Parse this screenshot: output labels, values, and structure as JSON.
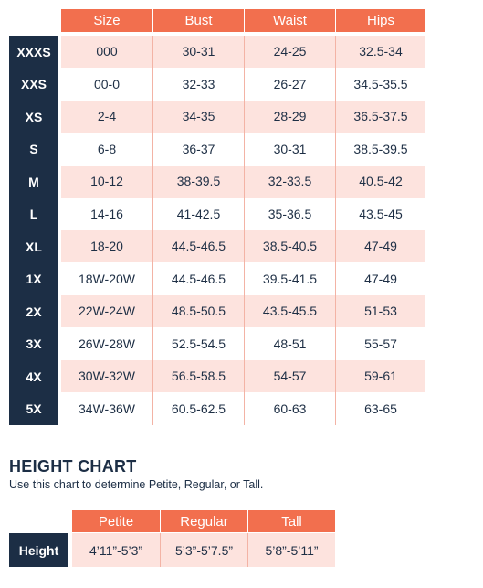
{
  "size_chart": {
    "headers": [
      "Size",
      "Bust",
      "Waist",
      "Hips"
    ],
    "rows": [
      {
        "label": "XXXS",
        "cells": [
          "000",
          "30-31",
          "24-25",
          "32.5-34"
        ]
      },
      {
        "label": "XXS",
        "cells": [
          "00-0",
          "32-33",
          "26-27",
          "34.5-35.5"
        ]
      },
      {
        "label": "XS",
        "cells": [
          "2-4",
          "34-35",
          "28-29",
          "36.5-37.5"
        ]
      },
      {
        "label": "S",
        "cells": [
          "6-8",
          "36-37",
          "30-31",
          "38.5-39.5"
        ]
      },
      {
        "label": "M",
        "cells": [
          "10-12",
          "38-39.5",
          "32-33.5",
          "40.5-42"
        ]
      },
      {
        "label": "L",
        "cells": [
          "14-16",
          "41-42.5",
          "35-36.5",
          "43.5-45"
        ]
      },
      {
        "label": "XL",
        "cells": [
          "18-20",
          "44.5-46.5",
          "38.5-40.5",
          "47-49"
        ]
      },
      {
        "label": "1X",
        "cells": [
          "18W-20W",
          "44.5-46.5",
          "39.5-41.5",
          "47-49"
        ]
      },
      {
        "label": "2X",
        "cells": [
          "22W-24W",
          "48.5-50.5",
          "43.5-45.5",
          "51-53"
        ]
      },
      {
        "label": "3X",
        "cells": [
          "26W-28W",
          "52.5-54.5",
          "48-51",
          "55-57"
        ]
      },
      {
        "label": "4X",
        "cells": [
          "30W-32W",
          "56.5-58.5",
          "54-57",
          "59-61"
        ]
      },
      {
        "label": "5X",
        "cells": [
          "34W-36W",
          "60.5-62.5",
          "60-63",
          "63-65"
        ]
      }
    ]
  },
  "height_chart": {
    "title": "HEIGHT CHART",
    "subtitle": "Use this chart to determine Petite, Regular, or Tall.",
    "headers": [
      "Petite",
      "Regular",
      "Tall"
    ],
    "row_label": "Height",
    "cells": [
      "4’11”-5’3”",
      "5’3”-5’7.5”",
      "5’8”-5’11”"
    ]
  },
  "colors": {
    "header_orange": "#f26f4e",
    "navy": "#1c2e45",
    "row_pink": "#fde3de",
    "divider": "#f3b3a5"
  }
}
